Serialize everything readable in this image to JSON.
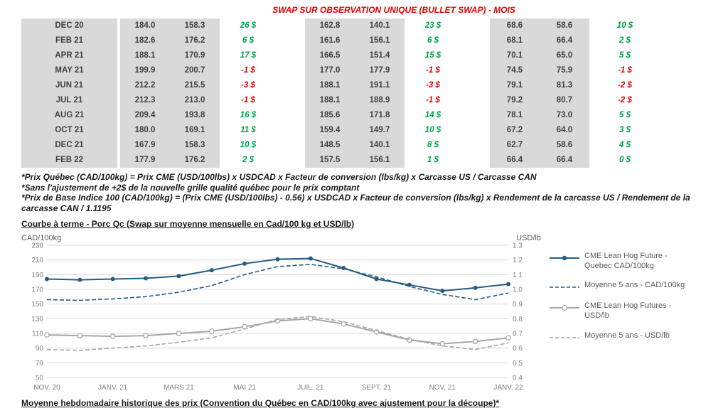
{
  "title": "SWAP SUR OBSERVATION UNIQUE (BULLET SWAP) - MOIS",
  "table": {
    "rows": [
      {
        "month": "DEC 20",
        "cells": [
          "184.0",
          "158.3",
          "26 $",
          "162.8",
          "140.1",
          "23 $",
          "68.6",
          "58.6",
          "10 $"
        ]
      },
      {
        "month": "FEB 21",
        "cells": [
          "182.6",
          "176.2",
          "6 $",
          "161.6",
          "156.1",
          "6 $",
          "68.1",
          "66.4",
          "2 $"
        ]
      },
      {
        "month": "APR 21",
        "cells": [
          "188.1",
          "170.9",
          "17 $",
          "166.5",
          "151.4",
          "15 $",
          "70.1",
          "65.0",
          "5 $"
        ]
      },
      {
        "month": "MAY 21",
        "cells": [
          "199.9",
          "200.7",
          "-1 $",
          "177.0",
          "177.9",
          "-1 $",
          "74.5",
          "75.9",
          "-1 $"
        ]
      },
      {
        "month": "JUN 21",
        "cells": [
          "212.2",
          "215.5",
          "-3 $",
          "188.1",
          "191.1",
          "-3 $",
          "79.1",
          "81.3",
          "-2 $"
        ]
      },
      {
        "month": "JUL 21",
        "cells": [
          "212.3",
          "213.0",
          "-1 $",
          "188.1",
          "188.9",
          "-1 $",
          "79.2",
          "80.7",
          "-2 $"
        ]
      },
      {
        "month": "AUG 21",
        "cells": [
          "209.4",
          "193.8",
          "16 $",
          "185.6",
          "171.8",
          "14 $",
          "78.1",
          "73.0",
          "5 $"
        ]
      },
      {
        "month": "OCT 21",
        "cells": [
          "180.0",
          "169.1",
          "11 $",
          "159.4",
          "149.7",
          "10 $",
          "67.2",
          "64.0",
          "3 $"
        ]
      },
      {
        "month": "DEC 21",
        "cells": [
          "167.9",
          "158.3",
          "10 $",
          "148.5",
          "140.1",
          "8 $",
          "62.7",
          "58.6",
          "4 $"
        ]
      },
      {
        "month": "FEB 22",
        "cells": [
          "177.9",
          "176.2",
          "2 $",
          "157.5",
          "156.1",
          "1 $",
          "66.4",
          "66.4",
          "0 $"
        ]
      }
    ]
  },
  "footnotes": [
    "*Prix Québec (CAD/100kg) = Prix CME (USD/100lbs) x USDCAD x Facteur de conversion (lbs/kg) x Carcasse US / Carcasse CAN",
    "*Sans l'ajustement de +2$ de la nouvelle grille qualité québec pour le prix comptant",
    "*Prix de Base Indice 100 (CAD/100kg) = (Prix CME (USD/100lbs) - 0.56) x USDCAD x Facteur de conversion (lbs/kg) x Rendement de la carcasse US / Rendement de la carcasse CAN / 1.1195"
  ],
  "section_title": "Courbe à terme - Porc Qc (Swap sur moyenne mensuelle en Cad/100 kg et USD/lb)",
  "chart_data": {
    "type": "line",
    "left_axis": {
      "label": "CAD/100kg",
      "min": 50,
      "max": 230,
      "step": 20
    },
    "right_axis": {
      "label": "USD/lb",
      "min": 0.4,
      "max": 1.3,
      "step": 0.1
    },
    "n_points": 15,
    "tick_every": 2,
    "x_tick_labels": [
      "NOV. 20",
      "JANV. 21",
      "MARS 21",
      "MAI 21",
      "JUIL. 21",
      "SEPT. 21",
      "NOV. 21",
      "JANV. 22"
    ],
    "grid": true,
    "legend_position": "right",
    "series": [
      {
        "name": "CME Lean Hog Future - Quebec CAD/100kg",
        "axis": "left",
        "line": "solid",
        "marker": "dot",
        "color": "#245c84",
        "values": [
          184,
          183,
          184,
          185,
          188,
          196,
          205,
          211,
          212,
          199,
          184,
          176,
          168,
          172,
          177
        ]
      },
      {
        "name": "Moyenne 5 ans - CAD/100kg",
        "axis": "left",
        "line": "dashed",
        "marker": "none",
        "color": "#245c84",
        "values": [
          156,
          155,
          157,
          160,
          166,
          175,
          190,
          201,
          204,
          198,
          187,
          174,
          163,
          156,
          165
        ]
      },
      {
        "name": "CME Lean Hog Futures - USD/lb",
        "axis": "right",
        "line": "solid",
        "marker": "circle",
        "color": "#a6a6a6",
        "values": [
          0.69,
          0.685,
          0.68,
          0.685,
          0.7,
          0.715,
          0.745,
          0.785,
          0.8,
          0.765,
          0.71,
          0.655,
          0.63,
          0.645,
          0.67
        ]
      },
      {
        "name": "Moyenne 5 ans - USD/lb",
        "axis": "right",
        "line": "dashed",
        "marker": "none",
        "color": "#a6a6a6",
        "values": [
          0.59,
          0.585,
          0.6,
          0.615,
          0.64,
          0.67,
          0.73,
          0.795,
          0.815,
          0.78,
          0.72,
          0.66,
          0.615,
          0.59,
          0.635
        ]
      }
    ]
  },
  "bottom_title": "Moyenne hebdomadaire historique des prix (Convention du Québec en CAD/100kg avec ajustement pour la découpe)*",
  "colors": {
    "positive": "#00a14b",
    "negative": "#e00000",
    "title_red": "#e00000",
    "table_gray": "#d9d9d9",
    "grid": "#d9d9d9"
  }
}
